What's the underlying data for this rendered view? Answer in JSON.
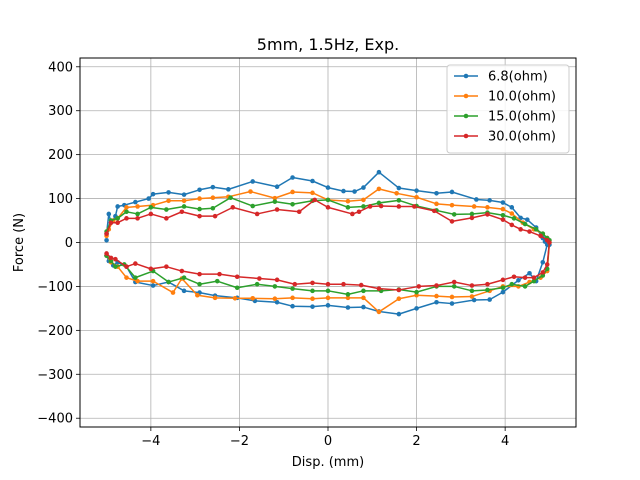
{
  "chart_data": {
    "type": "line",
    "title": "5mm, 1.5Hz, Exp.",
    "xlabel": "Disp. (mm)",
    "ylabel": "Force (N)",
    "xlim": [
      -5.6,
      5.6
    ],
    "ylim": [
      -420,
      420
    ],
    "xticks": [
      -4,
      -2,
      0,
      2,
      4
    ],
    "yticks": [
      -400,
      -300,
      -200,
      -100,
      0,
      100,
      200,
      300,
      400
    ],
    "grid": true,
    "legend_position": "top-right",
    "series": [
      {
        "name": "6.8(ohm)",
        "color": "#1f77b4",
        "x": [
          -5.0,
          -5.0,
          -4.95,
          -4.9,
          -4.8,
          -4.75,
          -4.6,
          -4.35,
          -4.05,
          -3.95,
          -3.6,
          -3.25,
          -2.9,
          -2.6,
          -2.25,
          -1.7,
          -1.15,
          -0.8,
          -0.35,
          0.0,
          0.35,
          0.6,
          0.8,
          1.15,
          1.6,
          2.0,
          2.45,
          2.8,
          3.35,
          3.65,
          3.95,
          4.15,
          4.35,
          4.5,
          4.7,
          4.85,
          4.9,
          5.0,
          4.95,
          4.85,
          4.7,
          4.55,
          4.3,
          3.95,
          3.65,
          3.3,
          2.8,
          2.45,
          2.0,
          1.6,
          1.15,
          0.8,
          0.45,
          0.0,
          -0.35,
          -0.8,
          -1.15,
          -1.65,
          -2.05,
          -2.55,
          -2.9,
          -3.25,
          -3.6,
          -3.95,
          -4.35,
          -4.55,
          -4.75,
          -4.85,
          -4.95,
          -5.0
        ],
        "y": [
          5,
          20,
          65,
          45,
          60,
          82,
          85,
          92,
          100,
          110,
          114,
          109,
          120,
          126,
          121,
          139,
          127,
          148,
          140,
          125,
          117,
          116,
          125,
          160,
          124,
          118,
          112,
          115,
          98,
          96,
          91,
          80,
          56,
          52,
          34,
          10,
          2,
          -5,
          -5,
          -45,
          -88,
          -70,
          -86,
          -113,
          -130,
          -131,
          -139,
          -136,
          -150,
          -163,
          -157,
          -147,
          -148,
          -143,
          -146,
          -145,
          -136,
          -133,
          -126,
          -121,
          -114,
          -110,
          -90,
          -98,
          -90,
          -55,
          -45,
          -52,
          -42,
          -30
        ]
      },
      {
        "name": "10.0(ohm)",
        "color": "#ff7f0e",
        "x": [
          -5.0,
          -4.95,
          -4.85,
          -4.75,
          -4.55,
          -4.3,
          -3.95,
          -3.6,
          -3.25,
          -2.9,
          -2.6,
          -2.25,
          -1.75,
          -1.2,
          -0.8,
          -0.35,
          0.0,
          0.45,
          0.8,
          1.15,
          1.55,
          2.0,
          2.45,
          2.8,
          3.3,
          3.6,
          3.95,
          4.15,
          4.4,
          4.65,
          4.85,
          4.95,
          5.0,
          4.95,
          4.8,
          4.55,
          4.3,
          3.95,
          3.65,
          3.25,
          2.8,
          2.45,
          2.0,
          1.6,
          1.15,
          0.8,
          0.45,
          0.0,
          -0.35,
          -0.8,
          -1.2,
          -1.7,
          -2.1,
          -2.55,
          -2.95,
          -3.3,
          -3.5,
          -3.95,
          -4.3,
          -4.55,
          -4.75,
          -4.9,
          -5.0
        ],
        "y": [
          15,
          30,
          50,
          55,
          80,
          82,
          85,
          95,
          95,
          100,
          102,
          104,
          116,
          101,
          115,
          113,
          97,
          94,
          97,
          122,
          112,
          103,
          88,
          85,
          82,
          80,
          76,
          66,
          45,
          30,
          20,
          10,
          0,
          -65,
          -80,
          -90,
          -100,
          -100,
          -110,
          -123,
          -124,
          -122,
          -120,
          -128,
          -158,
          -126,
          -126,
          -126,
          -128,
          -126,
          -128,
          -127,
          -127,
          -126,
          -120,
          -82,
          -114,
          -88,
          -88,
          -80,
          -55,
          -45,
          -30
        ]
      },
      {
        "name": "15.0(ohm)",
        "color": "#2ca02c",
        "x": [
          -5.0,
          -4.9,
          -4.75,
          -4.55,
          -4.3,
          -4.0,
          -3.65,
          -3.25,
          -2.9,
          -2.6,
          -2.2,
          -1.7,
          -1.2,
          -0.8,
          -0.35,
          0.0,
          0.45,
          0.8,
          1.15,
          1.6,
          2.0,
          2.45,
          2.85,
          3.25,
          3.6,
          3.95,
          4.2,
          4.45,
          4.7,
          4.85,
          4.95,
          5.0,
          4.95,
          4.85,
          4.65,
          4.45,
          4.15,
          3.95,
          3.6,
          3.25,
          2.85,
          2.45,
          2.0,
          1.6,
          1.2,
          0.8,
          0.45,
          0.0,
          -0.35,
          -0.8,
          -1.2,
          -1.6,
          -2.05,
          -2.5,
          -2.9,
          -3.25,
          -3.6,
          -3.95,
          -4.35,
          -4.6,
          -4.8,
          -4.9,
          -5.0
        ],
        "y": [
          25,
          50,
          55,
          70,
          65,
          80,
          75,
          82,
          76,
          78,
          102,
          83,
          93,
          87,
          95,
          97,
          80,
          82,
          90,
          96,
          83,
          73,
          64,
          65,
          68,
          62,
          55,
          42,
          30,
          20,
          10,
          5,
          -60,
          -75,
          -88,
          -100,
          -95,
          -103,
          -108,
          -110,
          -100,
          -100,
          -113,
          -107,
          -110,
          -110,
          -118,
          -110,
          -110,
          -105,
          -100,
          -95,
          -103,
          -88,
          -95,
          -80,
          -90,
          -65,
          -80,
          -50,
          -55,
          -42,
          -30
        ]
      },
      {
        "name": "30.0(ohm)",
        "color": "#d62728",
        "x": [
          -5.0,
          -4.9,
          -4.75,
          -4.55,
          -4.3,
          -4.0,
          -3.65,
          -3.3,
          -2.9,
          -2.55,
          -2.15,
          -1.6,
          -1.15,
          -0.65,
          -0.3,
          0.0,
          0.55,
          0.7,
          0.95,
          1.2,
          1.6,
          1.95,
          2.4,
          2.8,
          3.25,
          3.6,
          3.95,
          4.15,
          4.35,
          4.55,
          4.8,
          4.95,
          5.0,
          4.95,
          4.85,
          4.65,
          4.45,
          4.2,
          3.95,
          3.6,
          3.25,
          2.85,
          2.45,
          2.05,
          1.6,
          1.15,
          0.75,
          0.35,
          0.0,
          -0.35,
          -0.75,
          -1.15,
          -1.55,
          -2.05,
          -2.45,
          -2.9,
          -3.3,
          -3.65,
          -4.0,
          -4.35,
          -4.55,
          -4.8,
          -4.9,
          -5.0
        ],
        "y": [
          20,
          45,
          45,
          55,
          55,
          65,
          55,
          70,
          60,
          60,
          80,
          65,
          75,
          70,
          97,
          80,
          65,
          70,
          82,
          83,
          82,
          82,
          72,
          48,
          56,
          64,
          52,
          40,
          30,
          25,
          15,
          5,
          0,
          -50,
          -68,
          -80,
          -80,
          -78,
          -85,
          -95,
          -98,
          -90,
          -98,
          -100,
          -108,
          -105,
          -97,
          -95,
          -95,
          -92,
          -95,
          -85,
          -82,
          -78,
          -72,
          -72,
          -65,
          -55,
          -60,
          -48,
          -55,
          -38,
          -35,
          -25
        ]
      }
    ]
  }
}
